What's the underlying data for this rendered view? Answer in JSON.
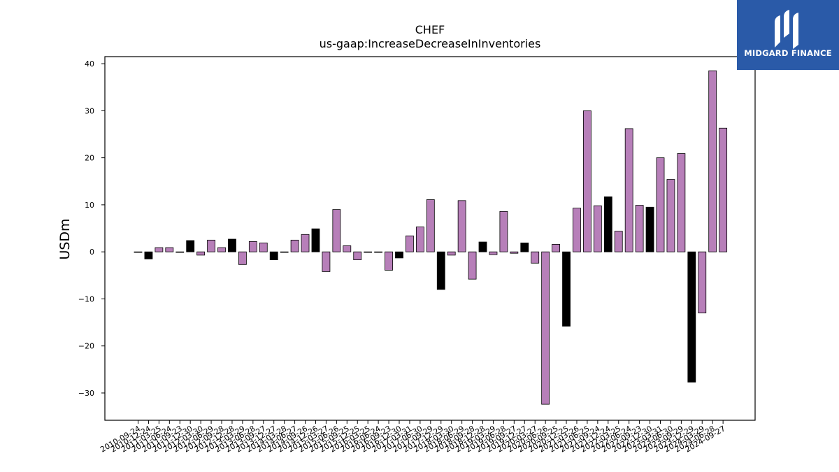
{
  "brand": {
    "name": "MIDGARD FINANCE",
    "background_color": "#2a5aa8"
  },
  "chart_data": {
    "type": "bar",
    "title": "CHEF",
    "subtitle": "us-gaap:IncreaseDecreaseInInventories",
    "xlabel": "",
    "ylabel": "USDm",
    "ylim": [
      -35.8,
      41.5
    ],
    "yticks": [
      -30,
      -20,
      -10,
      0,
      10,
      20,
      30,
      40
    ],
    "grid": false,
    "colors": {
      "quarterly": "#b77fb9",
      "annual": "#000000"
    },
    "categories": [
      "2010-09-24",
      "2010-12-24",
      "2011-03-25",
      "2011-06-24",
      "2011-09-23",
      "2011-12-30",
      "2012-03-30",
      "2012-06-29",
      "2012-09-28",
      "2012-12-28",
      "2013-03-29",
      "2013-06-28",
      "2013-09-27",
      "2013-12-27",
      "2014-03-28",
      "2014-06-27",
      "2014-09-26",
      "2014-12-26",
      "2015-03-27",
      "2015-06-26",
      "2015-09-25",
      "2015-12-25",
      "2016-03-25",
      "2016-06-24",
      "2016-09-23",
      "2016-12-30",
      "2017-03-31",
      "2017-06-30",
      "2017-09-29",
      "2017-12-29",
      "2018-03-30",
      "2018-06-29",
      "2018-09-28",
      "2018-12-28",
      "2019-03-29",
      "2019-06-28",
      "2019-09-27",
      "2019-12-27",
      "2020-03-27",
      "2020-06-26",
      "2020-09-25",
      "2020-12-25",
      "2021-03-26",
      "2021-06-25",
      "2021-09-24",
      "2021-12-24",
      "2022-03-25",
      "2022-06-24",
      "2022-09-23",
      "2022-12-30",
      "2023-03-31",
      "2023-06-30",
      "2023-09-29",
      "2023-12-29",
      "2024-03-29",
      "2024-06-28",
      "2024-09-27"
    ],
    "values": [
      -0.1,
      -1.5,
      0.9,
      0.9,
      -0.1,
      2.4,
      -0.7,
      2.5,
      0.9,
      2.7,
      -2.7,
      2.2,
      1.9,
      -1.7,
      -0.1,
      2.5,
      3.7,
      4.9,
      -4.2,
      9.0,
      1.3,
      -1.7,
      -0.1,
      -0.1,
      -3.9,
      -1.3,
      3.4,
      5.3,
      11.1,
      -8.0,
      -0.7,
      10.9,
      -5.8,
      2.1,
      -0.6,
      8.6,
      -0.3,
      1.9,
      -2.4,
      -32.4,
      1.6,
      -15.8,
      9.3,
      30.0,
      9.8,
      11.7,
      4.4,
      26.2,
      9.9,
      9.5,
      20.0,
      15.4,
      20.9,
      -27.7,
      -13.0,
      38.5,
      26.3
    ],
    "annual_flags": [
      0,
      1,
      0,
      0,
      0,
      1,
      0,
      0,
      0,
      1,
      0,
      0,
      0,
      1,
      0,
      0,
      0,
      1,
      0,
      0,
      0,
      0,
      0,
      0,
      0,
      1,
      0,
      0,
      0,
      1,
      0,
      0,
      0,
      1,
      0,
      0,
      0,
      1,
      0,
      0,
      0,
      1,
      0,
      0,
      0,
      1,
      0,
      0,
      0,
      1,
      0,
      0,
      0,
      1,
      0,
      0,
      0
    ]
  }
}
